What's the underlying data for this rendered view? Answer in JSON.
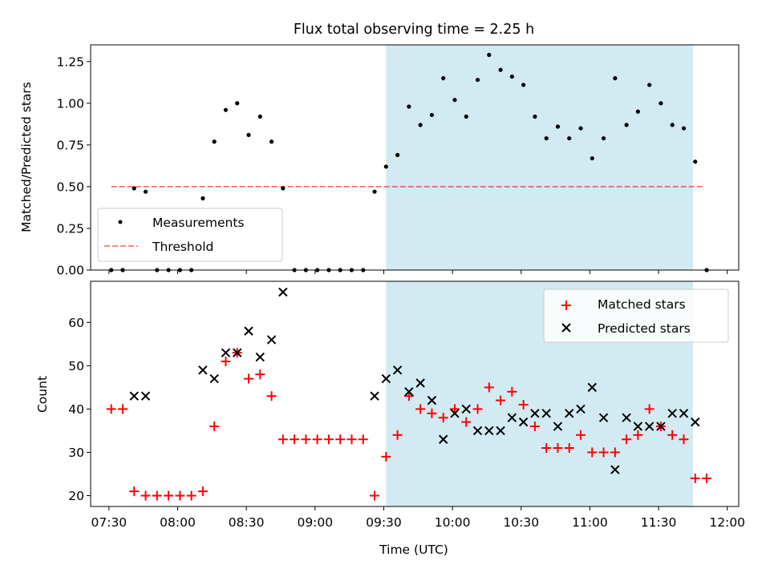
{
  "figure": {
    "title": "Flux total observing time = 2.25 h"
  },
  "colors": {
    "shade": "#add8e6",
    "measurement": "#000000",
    "threshold": "#ff0000",
    "matched": "#ff0000",
    "predicted": "#000000"
  },
  "x_axis": {
    "xlabel": "Time (UTC)",
    "tick_labels": [
      "07:30",
      "08:00",
      "08:30",
      "09:00",
      "09:30",
      "10:00",
      "10:30",
      "11:00",
      "11:30",
      "12:00"
    ]
  },
  "chart_data": [
    {
      "type": "scatter",
      "panel": "top",
      "xlabel": "",
      "ylabel": "Matched/Predicted stars",
      "xlim": [
        "07:22",
        "12:05"
      ],
      "ylim": [
        0,
        1.35
      ],
      "yticks": [
        0.0,
        0.25,
        0.5,
        0.75,
        1.0,
        1.25
      ],
      "ytick_labels": [
        "0.00",
        "0.25",
        "0.50",
        "0.75",
        "1.00",
        "1.25"
      ],
      "shaded_span": [
        "09:31",
        "11:45"
      ],
      "legend_position": "lower-left",
      "threshold": {
        "name": "Threshold",
        "y": 0.5,
        "x_range": [
          "07:31",
          "11:50"
        ],
        "style": "dashed"
      },
      "series": [
        {
          "name": "Measurements",
          "points": [
            [
              "07:31",
              0.0
            ],
            [
              "07:36",
              0.0
            ],
            [
              "07:41",
              0.49
            ],
            [
              "07:46",
              0.47
            ],
            [
              "07:51",
              0.0
            ],
            [
              "07:56",
              0.0
            ],
            [
              "08:01",
              0.0
            ],
            [
              "08:06",
              0.0
            ],
            [
              "08:11",
              0.43
            ],
            [
              "08:16",
              0.77
            ],
            [
              "08:21",
              0.96
            ],
            [
              "08:26",
              1.0
            ],
            [
              "08:31",
              0.81
            ],
            [
              "08:36",
              0.92
            ],
            [
              "08:41",
              0.77
            ],
            [
              "08:46",
              0.49
            ],
            [
              "08:51",
              0.0
            ],
            [
              "08:56",
              0.0
            ],
            [
              "09:01",
              0.0
            ],
            [
              "09:06",
              0.0
            ],
            [
              "09:11",
              0.0
            ],
            [
              "09:16",
              0.0
            ],
            [
              "09:21",
              0.0
            ],
            [
              "09:26",
              0.47
            ],
            [
              "09:31",
              0.62
            ],
            [
              "09:36",
              0.69
            ],
            [
              "09:41",
              0.98
            ],
            [
              "09:46",
              0.87
            ],
            [
              "09:51",
              0.93
            ],
            [
              "09:56",
              1.15
            ],
            [
              "10:01",
              1.02
            ],
            [
              "10:06",
              0.92
            ],
            [
              "10:11",
              1.14
            ],
            [
              "10:16",
              1.29
            ],
            [
              "10:21",
              1.2
            ],
            [
              "10:26",
              1.16
            ],
            [
              "10:31",
              1.11
            ],
            [
              "10:36",
              0.92
            ],
            [
              "10:41",
              0.79
            ],
            [
              "10:46",
              0.86
            ],
            [
              "10:51",
              0.79
            ],
            [
              "10:56",
              0.85
            ],
            [
              "11:01",
              0.67
            ],
            [
              "11:06",
              0.79
            ],
            [
              "11:11",
              1.15
            ],
            [
              "11:16",
              0.87
            ],
            [
              "11:21",
              0.95
            ],
            [
              "11:26",
              1.11
            ],
            [
              "11:31",
              1.0
            ],
            [
              "11:36",
              0.87
            ],
            [
              "11:41",
              0.85
            ],
            [
              "11:46",
              0.65
            ],
            [
              "11:51",
              0.0
            ]
          ]
        }
      ]
    },
    {
      "type": "scatter",
      "panel": "bottom",
      "xlabel": "Time (UTC)",
      "ylabel": "Count",
      "xlim": [
        "07:22",
        "12:05"
      ],
      "ylim": [
        17.5,
        69.5
      ],
      "yticks": [
        20,
        30,
        40,
        50,
        60
      ],
      "ytick_labels": [
        "20",
        "30",
        "40",
        "50",
        "60"
      ],
      "shaded_span": [
        "09:31",
        "11:45"
      ],
      "legend_position": "upper-right",
      "series": [
        {
          "name": "Matched stars",
          "marker": "+",
          "points": [
            [
              "07:31",
              40
            ],
            [
              "07:36",
              40
            ],
            [
              "07:41",
              21
            ],
            [
              "07:46",
              20
            ],
            [
              "07:51",
              20
            ],
            [
              "07:56",
              20
            ],
            [
              "08:01",
              20
            ],
            [
              "08:06",
              20
            ],
            [
              "08:11",
              21
            ],
            [
              "08:16",
              36
            ],
            [
              "08:21",
              51
            ],
            [
              "08:26",
              53
            ],
            [
              "08:31",
              47
            ],
            [
              "08:36",
              48
            ],
            [
              "08:41",
              43
            ],
            [
              "08:46",
              33
            ],
            [
              "08:51",
              33
            ],
            [
              "08:56",
              33
            ],
            [
              "09:01",
              33
            ],
            [
              "09:06",
              33
            ],
            [
              "09:11",
              33
            ],
            [
              "09:16",
              33
            ],
            [
              "09:21",
              33
            ],
            [
              "09:26",
              20
            ],
            [
              "09:31",
              29
            ],
            [
              "09:36",
              34
            ],
            [
              "09:41",
              43
            ],
            [
              "09:46",
              40
            ],
            [
              "09:51",
              39
            ],
            [
              "09:56",
              38
            ],
            [
              "10:01",
              40
            ],
            [
              "10:06",
              37
            ],
            [
              "10:11",
              40
            ],
            [
              "10:16",
              45
            ],
            [
              "10:21",
              42
            ],
            [
              "10:26",
              44
            ],
            [
              "10:31",
              41
            ],
            [
              "10:36",
              36
            ],
            [
              "10:41",
              31
            ],
            [
              "10:46",
              31
            ],
            [
              "10:51",
              31
            ],
            [
              "10:56",
              34
            ],
            [
              "11:01",
              30
            ],
            [
              "11:06",
              30
            ],
            [
              "11:11",
              30
            ],
            [
              "11:16",
              33
            ],
            [
              "11:21",
              34
            ],
            [
              "11:26",
              40
            ],
            [
              "11:31",
              36
            ],
            [
              "11:36",
              34
            ],
            [
              "11:41",
              33
            ],
            [
              "11:46",
              24
            ],
            [
              "11:51",
              24
            ]
          ]
        },
        {
          "name": "Predicted stars",
          "marker": "x",
          "points": [
            [
              "07:41",
              43
            ],
            [
              "07:46",
              43
            ],
            [
              "08:11",
              49
            ],
            [
              "08:16",
              47
            ],
            [
              "08:21",
              53
            ],
            [
              "08:26",
              53
            ],
            [
              "08:31",
              58
            ],
            [
              "08:36",
              52
            ],
            [
              "08:41",
              56
            ],
            [
              "08:46",
              67
            ],
            [
              "09:26",
              43
            ],
            [
              "09:31",
              47
            ],
            [
              "09:36",
              49
            ],
            [
              "09:41",
              44
            ],
            [
              "09:46",
              46
            ],
            [
              "09:51",
              42
            ],
            [
              "09:56",
              33
            ],
            [
              "10:01",
              39
            ],
            [
              "10:06",
              40
            ],
            [
              "10:11",
              35
            ],
            [
              "10:16",
              35
            ],
            [
              "10:21",
              35
            ],
            [
              "10:26",
              38
            ],
            [
              "10:31",
              37
            ],
            [
              "10:36",
              39
            ],
            [
              "10:41",
              39
            ],
            [
              "10:46",
              36
            ],
            [
              "10:51",
              39
            ],
            [
              "10:56",
              40
            ],
            [
              "11:01",
              45
            ],
            [
              "11:06",
              38
            ],
            [
              "11:11",
              26
            ],
            [
              "11:16",
              38
            ],
            [
              "11:21",
              36
            ],
            [
              "11:26",
              36
            ],
            [
              "11:31",
              36
            ],
            [
              "11:36",
              39
            ],
            [
              "11:41",
              39
            ],
            [
              "11:46",
              37
            ]
          ]
        }
      ]
    }
  ]
}
